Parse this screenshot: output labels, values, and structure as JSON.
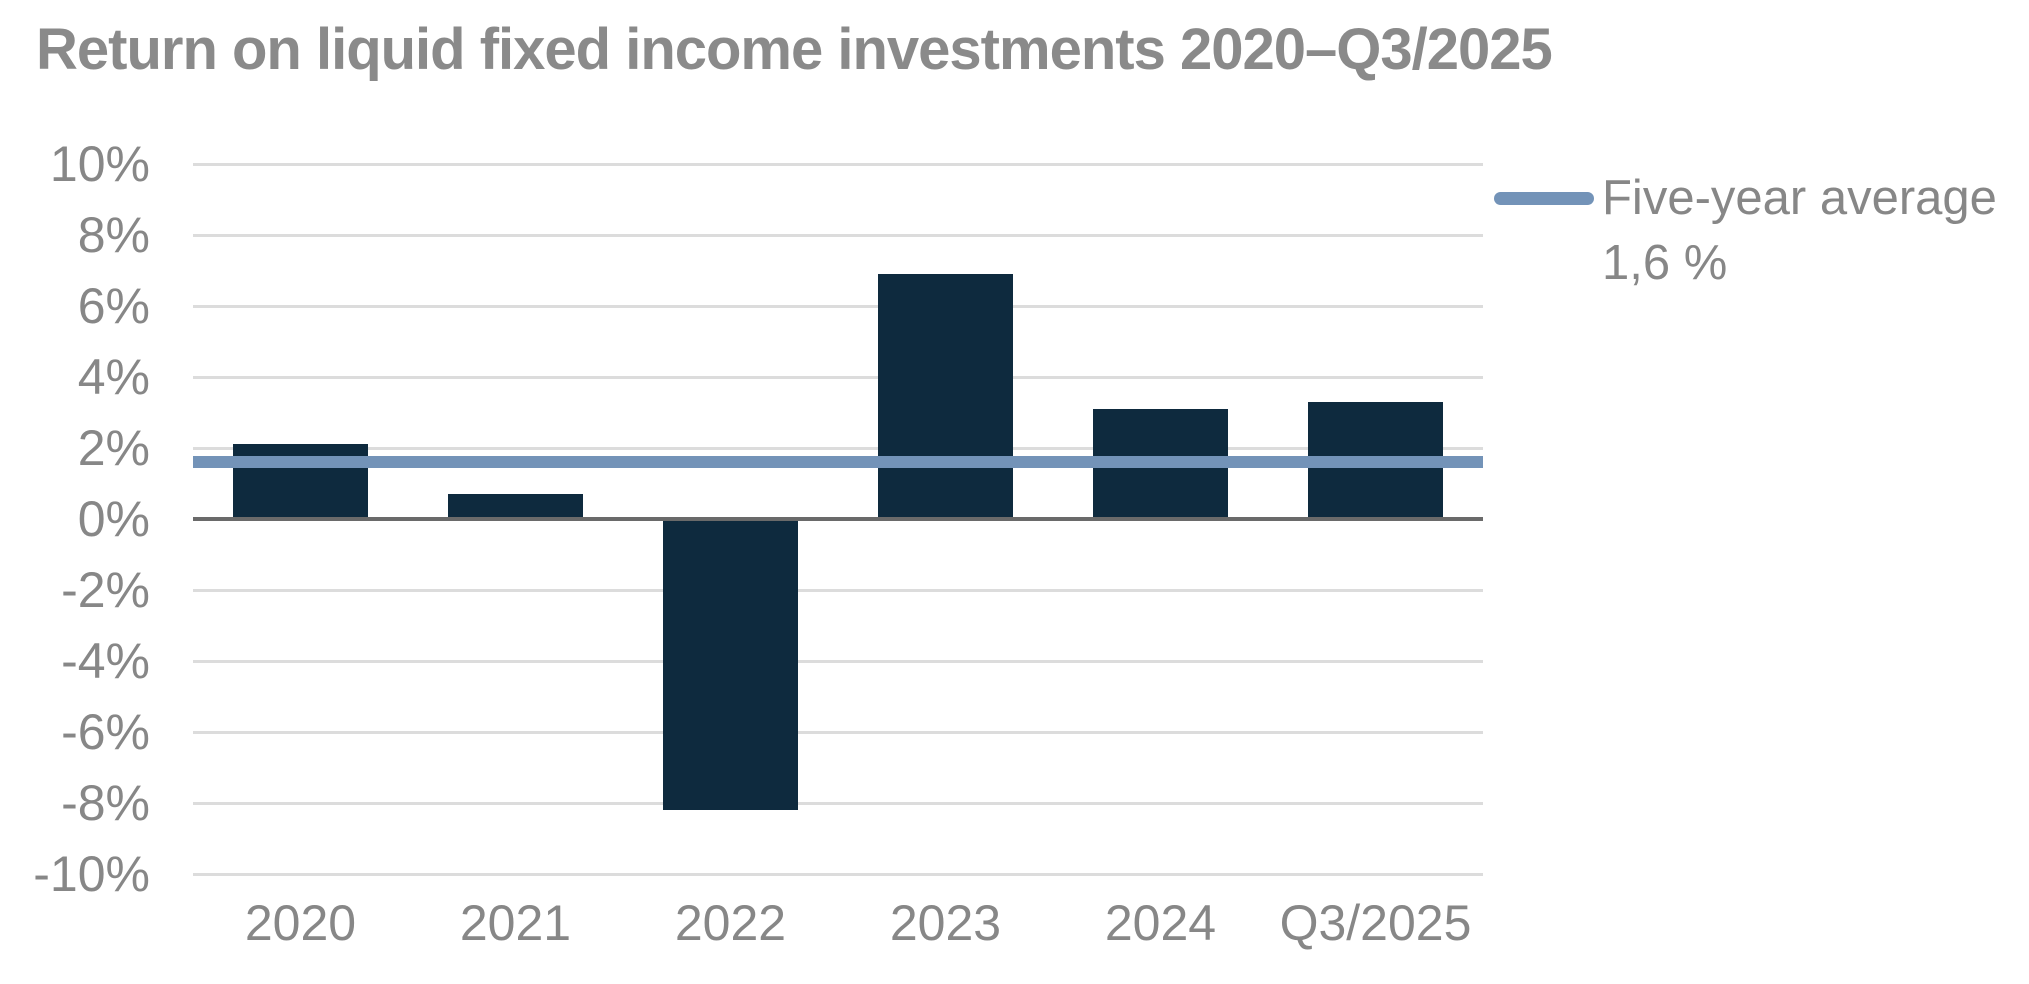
{
  "title": "Return on liquid fixed income investments 2020–Q3/2025",
  "legend": {
    "line1": "Five-year average",
    "line2": "1,6 %"
  },
  "colors": {
    "bar": "#0e2a3e",
    "average_line": "#7393b8",
    "gridline": "#dcdcdc",
    "zero_line": "#6a6a6a",
    "text_gray": "#878787",
    "title_gray": "#8a8a8a",
    "background": "#ffffff"
  },
  "chart_data": {
    "type": "bar",
    "title": "Return on liquid fixed income investments 2020–Q3/2025",
    "categories": [
      "2020",
      "2021",
      "2022",
      "2023",
      "2024",
      "Q3/2025"
    ],
    "values": [
      2.1,
      0.7,
      -8.2,
      6.9,
      3.1,
      3.3
    ],
    "series_name": "Return %",
    "average_line": {
      "value": 1.6,
      "label": "Five-year average",
      "value_label": "1,6 %"
    },
    "xlabel": "",
    "ylabel": "",
    "ylim": [
      -10,
      10
    ],
    "ytick_step": 2,
    "ytick_labels": [
      "10%",
      "8%",
      "6%",
      "4%",
      "2%",
      "0%",
      "-2%",
      "-4%",
      "-6%",
      "-8%",
      "-10%"
    ],
    "grid": true,
    "legend_position": "right",
    "bar_width_fraction": 0.63
  }
}
